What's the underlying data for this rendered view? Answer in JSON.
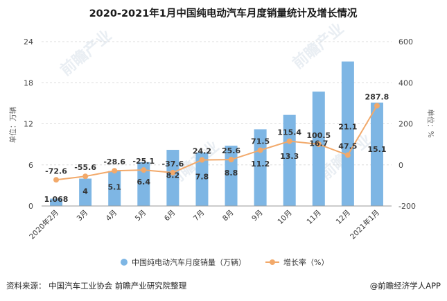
{
  "title": "2020-2021年1月中国纯电动汽车月度销量统计及增长情况",
  "footer": {
    "source": "资料来源：  中国汽车工业协会 前瞻产业研究院整理",
    "brand": "@前瞻经济学人APP"
  },
  "watermark": "前瞻产业",
  "colors": {
    "bar": "#7eb6e4",
    "line": "#f2a96a",
    "grid": "#dcdcdc"
  },
  "chart_data": {
    "type": "bar",
    "categories": [
      "2020年2月",
      "3月",
      "4月",
      "5月",
      "6月",
      "7月",
      "8月",
      "9月",
      "10月",
      "11月",
      "12月",
      "2021年1月"
    ],
    "series": [
      {
        "name": "中国纯电动汽车月度销量（万辆）",
        "type": "bar",
        "axis": "left",
        "values": [
          1.068,
          4,
          5.1,
          6.4,
          8.2,
          7.8,
          8.8,
          11.2,
          13.3,
          16.7,
          21.1,
          15.1
        ],
        "labels": [
          "1.068",
          "4",
          "5.1",
          "6.4",
          "8.2",
          "7.8",
          "8.8",
          "11.2",
          "13.3",
          "16.7",
          "21.1",
          "15.1"
        ]
      },
      {
        "name": "增长率（%）",
        "type": "line",
        "axis": "right",
        "values": [
          -72.6,
          -55.6,
          -28.6,
          -25.1,
          -37.6,
          24.2,
          25.6,
          71.5,
          115.4,
          100.5,
          47.5,
          287.8
        ],
        "labels": [
          "-72.6",
          "-55.6",
          "-28.6",
          "-25.1",
          "-37.6",
          "24.2",
          "25.6",
          "71.5",
          "115.4",
          "100.5",
          "47.5",
          "287.8"
        ]
      }
    ],
    "y_left": {
      "label": "单位：万辆",
      "ticks": [
        "0",
        "6",
        "12",
        "18",
        "24"
      ],
      "range": [
        0,
        24
      ]
    },
    "y_right": {
      "label": "单位：%",
      "ticks": [
        "-200",
        "0",
        "200",
        "400",
        "600"
      ],
      "range": [
        -200,
        600
      ]
    },
    "grid": true,
    "legend_position": "bottom"
  }
}
